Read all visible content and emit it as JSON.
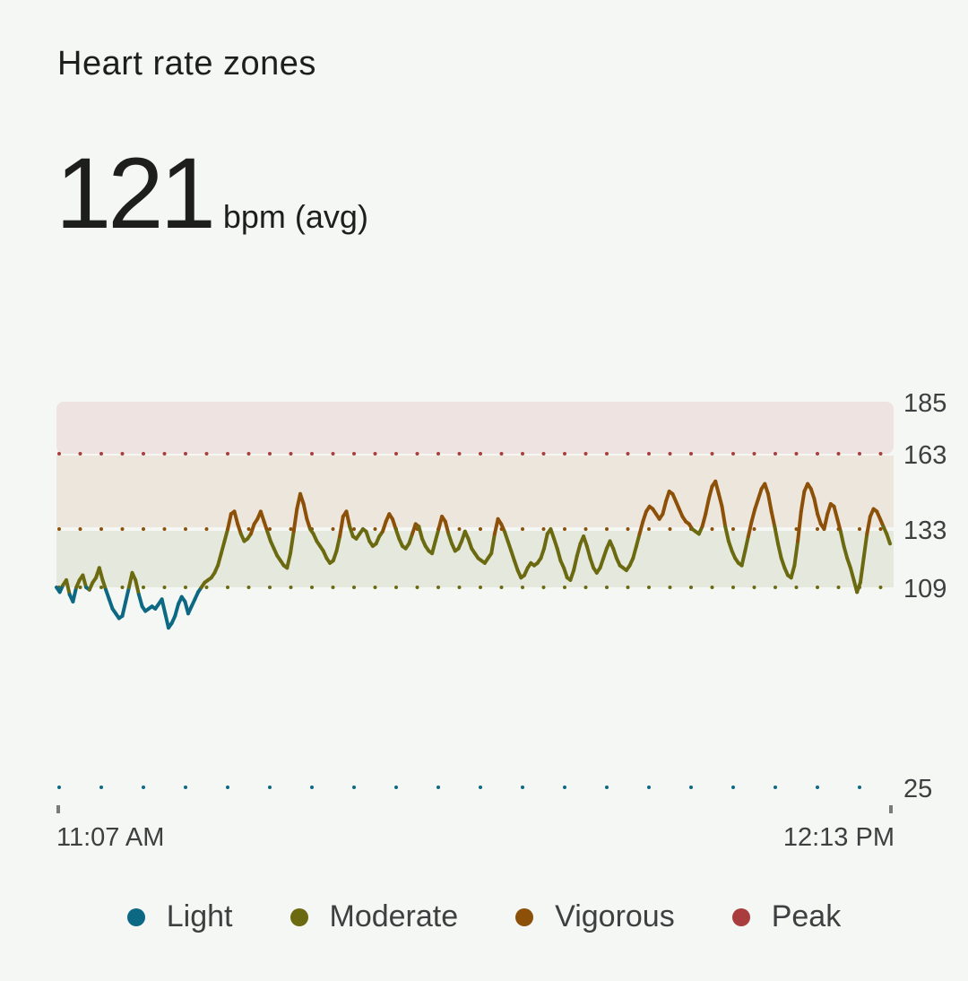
{
  "header": {
    "title": "Heart rate zones",
    "avg_value": "121",
    "avg_unit": "bpm (avg)"
  },
  "colors": {
    "light": "#0d6983",
    "moderate": "#6b6a10",
    "vigorous": "#8d5008",
    "peak": "#a93d3d",
    "zone_peak_bg": "#efe3e1",
    "zone_vigorous_bg": "#ece6dc",
    "zone_moderate_bg": "#e5e8dc"
  },
  "chart_data": {
    "type": "line",
    "ylim": [
      25,
      185
    ],
    "yticks": [
      "185",
      "163",
      "133",
      "109",
      "25"
    ],
    "x_start_label": "11:07 AM",
    "x_end_label": "12:13 PM",
    "zones": [
      {
        "name": "Light",
        "min": 25,
        "max": 109
      },
      {
        "name": "Moderate",
        "min": 109,
        "max": 133
      },
      {
        "name": "Vigorous",
        "min": 133,
        "max": 163
      },
      {
        "name": "Peak",
        "min": 163,
        "max": 185
      }
    ],
    "legend": [
      "Light",
      "Moderate",
      "Vigorous",
      "Peak"
    ],
    "series": [
      {
        "values": [
          109,
          107,
          110,
          112,
          106,
          103,
          109,
          112,
          114,
          109,
          108,
          111,
          113,
          117,
          112,
          108,
          104,
          100,
          98,
          96,
          97,
          103,
          109,
          115,
          112,
          106,
          101,
          99,
          100,
          101,
          100,
          102,
          104,
          98,
          92,
          94,
          97,
          102,
          105,
          103,
          98,
          101,
          104,
          107,
          109,
          111,
          112,
          113,
          115,
          118,
          123,
          128,
          133,
          139,
          140,
          135,
          131,
          128,
          129,
          131,
          135,
          137,
          140,
          136,
          132,
          128,
          125,
          122,
          120,
          118,
          117,
          123,
          132,
          141,
          147,
          143,
          137,
          133,
          131,
          128,
          126,
          124,
          121,
          119,
          120,
          124,
          130,
          138,
          140,
          134,
          130,
          129,
          131,
          133,
          132,
          128,
          126,
          127,
          130,
          132,
          136,
          139,
          137,
          133,
          129,
          126,
          125,
          127,
          131,
          135,
          134,
          129,
          126,
          124,
          123,
          128,
          133,
          138,
          136,
          131,
          127,
          124,
          125,
          128,
          132,
          129,
          125,
          123,
          121,
          120,
          119,
          121,
          123,
          131,
          137,
          135,
          132,
          128,
          124,
          120,
          116,
          113,
          114,
          117,
          119,
          118,
          119,
          121,
          125,
          131,
          133,
          129,
          125,
          120,
          117,
          113,
          112,
          116,
          122,
          127,
          130,
          126,
          121,
          117,
          115,
          117,
          121,
          125,
          128,
          125,
          121,
          118,
          117,
          116,
          118,
          121,
          126,
          131,
          136,
          140,
          142,
          141,
          139,
          137,
          139,
          144,
          148,
          147,
          144,
          141,
          138,
          136,
          135,
          133,
          132,
          131,
          134,
          139,
          145,
          150,
          152,
          147,
          142,
          134,
          128,
          124,
          121,
          119,
          118,
          124,
          130,
          136,
          141,
          145,
          149,
          151,
          147,
          140,
          134,
          127,
          121,
          117,
          114,
          113,
          118,
          128,
          140,
          148,
          151,
          149,
          145,
          139,
          135,
          133,
          139,
          143,
          142,
          137,
          132,
          126,
          121,
          117,
          112,
          107,
          111,
          121,
          131,
          138,
          141,
          140,
          137,
          134,
          131,
          127
        ]
      }
    ]
  }
}
